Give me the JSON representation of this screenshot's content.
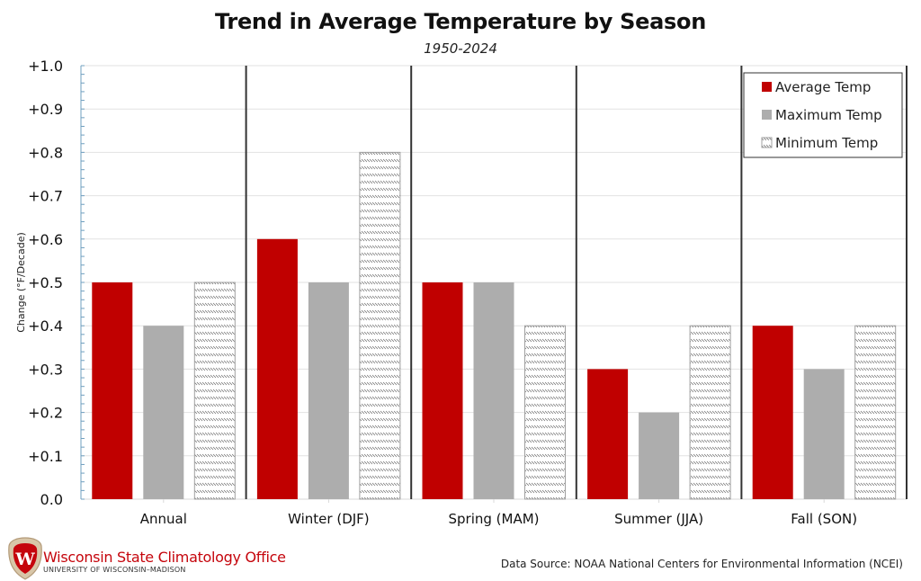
{
  "chart_data": {
    "type": "bar",
    "title": "Trend in Average Temperature by Season",
    "subtitle": "1950-2024",
    "xlabel": "",
    "ylabel": "Change (°F/Decade)",
    "ylim": [
      0,
      1.0
    ],
    "yticks": [
      0.0,
      0.1,
      0.2,
      0.3,
      0.4,
      0.5,
      0.6,
      0.7,
      0.8,
      0.9,
      1.0
    ],
    "ytick_labels": [
      "0.0",
      "+0.1",
      "+0.2",
      "+0.3",
      "+0.4",
      "+0.5",
      "+0.6",
      "+0.7",
      "+0.8",
      "+0.9",
      "+1.0"
    ],
    "grid": true,
    "categories": [
      "Annual",
      "Winter (DJF)",
      "Spring (MAM)",
      "Summer (JJA)",
      "Fall (SON)"
    ],
    "series": [
      {
        "name": "Average Temp",
        "color": "#c00000",
        "pattern": "solid",
        "values": [
          0.5,
          0.6,
          0.5,
          0.3,
          0.4
        ]
      },
      {
        "name": "Maximum Temp",
        "color": "#adadad",
        "pattern": "solid",
        "values": [
          0.4,
          0.5,
          0.5,
          0.2,
          0.3
        ]
      },
      {
        "name": "Minimum Temp",
        "color": "#8c8c8c",
        "pattern": "hatched",
        "values": [
          0.5,
          0.8,
          0.4,
          0.4,
          0.4
        ]
      }
    ],
    "legend_position": "top-right"
  },
  "footer": {
    "org_name": "Wisconsin State Climatology Office",
    "org_sub": "UNIVERSITY OF WISCONSIN–MADISON",
    "logo_letter": "W",
    "source": "Data Source: NOAA National Centers for Environmental Information (NCEI)"
  }
}
